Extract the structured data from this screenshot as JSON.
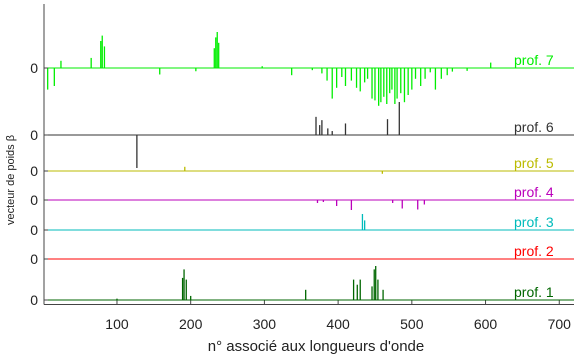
{
  "chart_data": {
    "type": "line",
    "title": "",
    "xlabel": "n° associé aux longueurs d'onde",
    "ylabel": "vecteur de poids β",
    "xlim": [
      1,
      720
    ],
    "x_ticks": [
      100,
      200,
      300,
      400,
      500,
      600,
      700
    ],
    "grid": false,
    "legend": "right-of-each-trace",
    "series": [
      {
        "name": "prof. 7",
        "color": "#00ee00",
        "zero_label": "0",
        "spikes": [
          [
            6,
            -0.6
          ],
          [
            15,
            -0.5
          ],
          [
            24,
            0.2
          ],
          [
            65,
            0.28
          ],
          [
            78,
            0.75
          ],
          [
            80,
            0.9
          ],
          [
            83,
            0.6
          ],
          [
            158,
            -0.18
          ],
          [
            207,
            -0.09
          ],
          [
            232,
            0.55
          ],
          [
            234,
            0.85
          ],
          [
            236,
            1.0
          ],
          [
            238,
            0.7
          ],
          [
            297,
            0.05
          ],
          [
            337,
            -0.2
          ],
          [
            365,
            -0.06
          ],
          [
            378,
            -0.15
          ],
          [
            385,
            -0.35
          ],
          [
            392,
            -0.85
          ],
          [
            398,
            -0.55
          ],
          [
            405,
            -0.25
          ],
          [
            410,
            -0.5
          ],
          [
            418,
            -0.35
          ],
          [
            425,
            -0.55
          ],
          [
            430,
            -0.65
          ],
          [
            436,
            -0.4
          ],
          [
            440,
            -0.3
          ],
          [
            446,
            -0.85
          ],
          [
            450,
            -0.9
          ],
          [
            455,
            -1.05
          ],
          [
            458,
            -0.95
          ],
          [
            462,
            -0.8
          ],
          [
            466,
            -1.0
          ],
          [
            470,
            -0.7
          ],
          [
            473,
            -0.6
          ],
          [
            477,
            -1.0
          ],
          [
            480,
            -0.85
          ],
          [
            485,
            -0.7
          ],
          [
            490,
            -0.95
          ],
          [
            495,
            -0.75
          ],
          [
            500,
            -0.6
          ],
          [
            505,
            -0.3
          ],
          [
            512,
            -0.5
          ],
          [
            518,
            -0.3
          ],
          [
            525,
            -0.12
          ],
          [
            532,
            -0.6
          ],
          [
            540,
            -0.3
          ],
          [
            548,
            -0.2
          ],
          [
            555,
            -0.1
          ],
          [
            575,
            -0.08
          ],
          [
            607,
            0.15
          ]
        ]
      },
      {
        "name": "prof. 6",
        "color": "#333333",
        "zero_label": "0",
        "spikes": [
          [
            127,
            -1.0
          ],
          [
            370,
            0.55
          ],
          [
            375,
            0.3
          ],
          [
            378,
            0.45
          ],
          [
            386,
            0.2
          ],
          [
            392,
            0.12
          ],
          [
            410,
            0.35
          ],
          [
            467,
            0.48
          ],
          [
            483,
            1.0
          ]
        ]
      },
      {
        "name": "prof. 5",
        "color": "#bbbb00",
        "zero_label": "0",
        "spikes": [
          [
            192,
            0.6
          ],
          [
            460,
            -0.4
          ]
        ]
      },
      {
        "name": "prof. 4",
        "color": "#bb00bb",
        "zero_label": "0",
        "spikes": [
          [
            372,
            -0.3
          ],
          [
            380,
            -0.2
          ],
          [
            398,
            -0.6
          ],
          [
            418,
            -1.0
          ],
          [
            474,
            -0.3
          ],
          [
            487,
            -0.85
          ],
          [
            508,
            -0.95
          ],
          [
            517,
            -0.45
          ]
        ]
      },
      {
        "name": "prof. 3",
        "color": "#00bbbb",
        "zero_label": "0",
        "spikes": [
          [
            433,
            1.0
          ],
          [
            436,
            0.6
          ]
        ]
      },
      {
        "name": "prof. 2",
        "color": "#ff0000",
        "zero_label": "0",
        "spikes": []
      },
      {
        "name": "prof. 1",
        "color": "#006600",
        "zero_label": "0",
        "spikes": [
          [
            100,
            0.04
          ],
          [
            189,
            0.65
          ],
          [
            191,
            0.9
          ],
          [
            194,
            0.6
          ],
          [
            200,
            0.12
          ],
          [
            356,
            0.3
          ],
          [
            421,
            0.6
          ],
          [
            426,
            0.45
          ],
          [
            430,
            0.6
          ],
          [
            446,
            0.4
          ],
          [
            449,
            0.9
          ],
          [
            451,
            1.0
          ],
          [
            454,
            0.6
          ],
          [
            461,
            0.3
          ]
        ]
      }
    ]
  }
}
